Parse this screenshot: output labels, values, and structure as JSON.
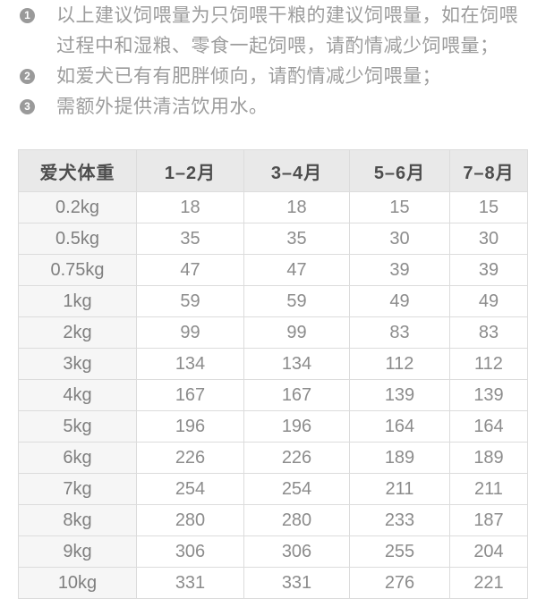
{
  "notes": [
    {
      "number": "1",
      "lines": [
        "以上建议饲喂量为只饲喂干粮的建议饲喂量，如在饲喂",
        "过程中和湿粮、零食一起饲喂，请酌情减少饲喂量；"
      ]
    },
    {
      "number": "2",
      "lines": [
        "如爱犬已有有肥胖倾向，请酌情减少饲喂量；"
      ]
    },
    {
      "number": "3",
      "lines": [
        "需额外提供清洁饮用水。"
      ]
    }
  ],
  "table": {
    "headers": [
      "爱犬体重",
      "1–2月",
      "3–4月",
      "5–6月",
      "7–8月"
    ],
    "rows": [
      {
        "weight": "0.2kg",
        "values": [
          "18",
          "18",
          "15",
          "15"
        ]
      },
      {
        "weight": "0.5kg",
        "values": [
          "35",
          "35",
          "30",
          "30"
        ]
      },
      {
        "weight": "0.75kg",
        "values": [
          "47",
          "47",
          "39",
          "39"
        ]
      },
      {
        "weight": "1kg",
        "values": [
          "59",
          "59",
          "49",
          "49"
        ]
      },
      {
        "weight": "2kg",
        "values": [
          "99",
          "99",
          "83",
          "83"
        ]
      },
      {
        "weight": "3kg",
        "values": [
          "134",
          "134",
          "112",
          "112"
        ]
      },
      {
        "weight": "4kg",
        "values": [
          "167",
          "167",
          "139",
          "139"
        ]
      },
      {
        "weight": "5kg",
        "values": [
          "196",
          "196",
          "164",
          "164"
        ]
      },
      {
        "weight": "6kg",
        "values": [
          "226",
          "226",
          "189",
          "189"
        ]
      },
      {
        "weight": "7kg",
        "values": [
          "254",
          "254",
          "211",
          "211"
        ]
      },
      {
        "weight": "8kg",
        "values": [
          "280",
          "280",
          "233",
          "187"
        ]
      },
      {
        "weight": "9kg",
        "values": [
          "306",
          "306",
          "255",
          "204"
        ]
      },
      {
        "weight": "10kg",
        "values": [
          "331",
          "331",
          "276",
          "221"
        ]
      }
    ]
  },
  "colors": {
    "header_bg": "#e9e9e9",
    "row_label_bg": "#f6f6f6",
    "border": "#dcdcdc",
    "header_text": "#4d4d4d",
    "cell_text": "#8c8c8c",
    "note_text": "#9c9c9c",
    "note_badge_bg": "#9a9a9a"
  }
}
